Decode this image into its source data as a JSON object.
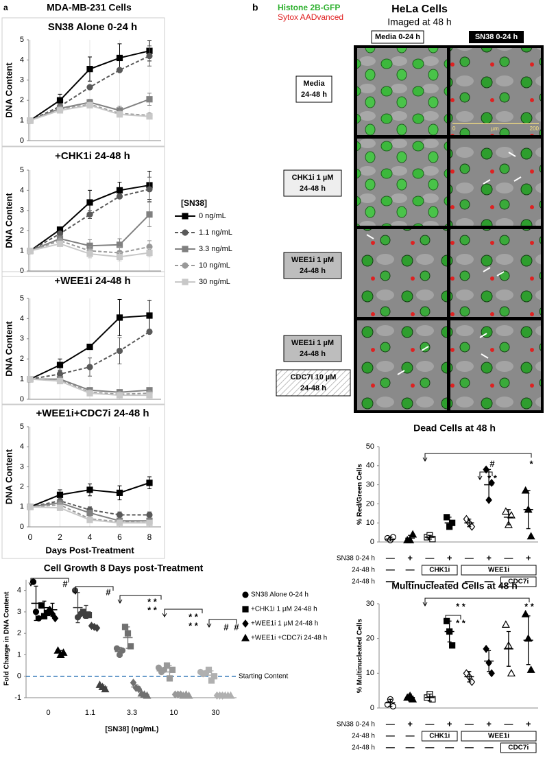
{
  "panel_a": {
    "label": "a",
    "title": "MDA-MB-231 Cells"
  },
  "panel_b": {
    "label": "b",
    "stain_green": "Histone 2B-GFP",
    "stain_red": "Sytox AADvanced",
    "title": "HeLa Cells",
    "subtitle": "Imaged at 48 h",
    "columns": [
      "Media 0-24 h",
      "SN38 0-24 h"
    ],
    "row_labels": [
      {
        "lines": [
          "Media",
          "24-48 h"
        ]
      },
      {
        "lines": [
          "CHK1i 1 µM",
          "24-48 h"
        ]
      },
      {
        "lines": [
          "WEE1i 1 µM",
          "24-48 h"
        ]
      },
      {
        "lines": [
          "WEE1i 1 µM",
          "24-48 h"
        ]
      },
      {
        "lines": [
          "CDC7i 10 µM",
          "24-48 h"
        ]
      }
    ],
    "scale_bar": {
      "start": "0",
      "unit": "µm",
      "end": "200"
    }
  },
  "chart_data": [
    {
      "type": "line",
      "title": "SN38 Alone 0-24 h",
      "ylabel": "DNA Content",
      "x": [
        0,
        2,
        4,
        6,
        8
      ],
      "xlim": [
        0,
        8
      ],
      "xticks": [
        0,
        2,
        4,
        6,
        8
      ],
      "xtick_labels": false,
      "ylim": [
        0,
        5
      ],
      "yticks": [
        0,
        1,
        2,
        3,
        4,
        5
      ],
      "series": [
        {
          "color": "#000000",
          "marker": "square",
          "dash": false,
          "values": [
            1,
            2.0,
            3.55,
            4.1,
            4.45
          ],
          "errors": [
            0,
            0.3,
            0.6,
            0.7,
            0.5
          ]
        },
        {
          "color": "#595959",
          "marker": "circle",
          "dash": true,
          "values": [
            1,
            1.7,
            2.65,
            3.5,
            4.2
          ],
          "errors": [
            0,
            0.1,
            0.1,
            0.1,
            0.5
          ]
        },
        {
          "color": "#808080",
          "marker": "square",
          "dash": false,
          "values": [
            1,
            1.6,
            1.9,
            1.5,
            2.05
          ],
          "errors": [
            0,
            0.2,
            0.15,
            0.2,
            0.3
          ]
        },
        {
          "color": "#999999",
          "marker": "circle",
          "dash": true,
          "values": [
            1,
            1.55,
            1.8,
            1.35,
            1.25
          ],
          "errors": [
            0,
            0.15,
            0.1,
            0.1,
            0.1
          ]
        },
        {
          "color": "#c8c8c8",
          "marker": "square",
          "dash": false,
          "values": [
            1,
            1.5,
            1.75,
            1.3,
            1.2
          ],
          "errors": [
            0,
            0.1,
            0.1,
            0.1,
            0.1
          ]
        }
      ]
    },
    {
      "type": "line",
      "title": "+CHK1i 24-48 h",
      "ylabel": "DNA Content",
      "x": [
        0,
        2,
        4,
        6,
        8
      ],
      "xlim": [
        0,
        8
      ],
      "xticks": [
        0,
        2,
        4,
        6,
        8
      ],
      "xtick_labels": false,
      "ylim": [
        0,
        5
      ],
      "yticks": [
        0,
        1,
        2,
        3,
        4,
        5
      ],
      "legend_title": "[SN38]",
      "series": [
        {
          "name": "0 ng/mL",
          "color": "#000000",
          "marker": "square",
          "dash": false,
          "values": [
            1,
            2.05,
            3.4,
            4.0,
            4.25
          ],
          "errors": [
            0,
            0.1,
            0.6,
            0.4,
            0.7
          ]
        },
        {
          "name": "1.1 ng/mL",
          "color": "#595959",
          "marker": "circle",
          "dash": true,
          "values": [
            1,
            1.85,
            2.8,
            3.7,
            4.05
          ],
          "errors": [
            0,
            0.1,
            0.2,
            0.1,
            0.6
          ]
        },
        {
          "name": "3.3 ng/mL",
          "color": "#808080",
          "marker": "square",
          "dash": false,
          "values": [
            1,
            1.6,
            1.25,
            1.3,
            2.8
          ],
          "errors": [
            0,
            0.1,
            0.3,
            0.3,
            0.6
          ]
        },
        {
          "name": "10 ng/mL",
          "color": "#999999",
          "marker": "circle",
          "dash": true,
          "values": [
            1,
            1.5,
            1.0,
            0.9,
            1.2
          ],
          "errors": [
            0,
            0.1,
            0.2,
            0.3,
            0.3
          ]
        },
        {
          "name": "30 ng/mL",
          "color": "#c8c8c8",
          "marker": "square",
          "dash": false,
          "values": [
            1,
            1.35,
            0.85,
            0.7,
            0.9
          ],
          "errors": [
            0,
            0.1,
            0.2,
            0.2,
            0.2
          ]
        }
      ]
    },
    {
      "type": "line",
      "title": "+WEE1i 24-48 h",
      "ylabel": "DNA Content",
      "x": [
        0,
        2,
        4,
        6,
        8
      ],
      "xlim": [
        0,
        8
      ],
      "xticks": [
        0,
        2,
        4,
        6,
        8
      ],
      "xtick_labels": false,
      "ylim": [
        0,
        5
      ],
      "yticks": [
        0,
        1,
        2,
        3,
        4,
        5
      ],
      "series": [
        {
          "color": "#000000",
          "marker": "square",
          "dash": false,
          "values": [
            1,
            1.7,
            2.6,
            4.05,
            4.15
          ],
          "errors": [
            0,
            0.3,
            0.1,
            0.9,
            0.75
          ]
        },
        {
          "color": "#595959",
          "marker": "circle",
          "dash": true,
          "values": [
            1,
            1.25,
            1.6,
            2.4,
            3.35
          ],
          "errors": [
            0,
            0.2,
            0.45,
            0.65,
            0.1
          ]
        },
        {
          "color": "#808080",
          "marker": "square",
          "dash": false,
          "values": [
            1,
            1.0,
            0.45,
            0.35,
            0.45
          ],
          "errors": [
            0,
            0.1,
            0.1,
            0.1,
            0.1
          ]
        },
        {
          "color": "#999999",
          "marker": "circle",
          "dash": true,
          "values": [
            1,
            0.95,
            0.35,
            0.25,
            0.3
          ],
          "errors": [
            0,
            0.05,
            0.05,
            0.05,
            0.05
          ]
        },
        {
          "color": "#c8c8c8",
          "marker": "square",
          "dash": false,
          "values": [
            1,
            0.9,
            0.3,
            0.2,
            0.2
          ],
          "errors": [
            0,
            0.05,
            0.05,
            0.05,
            0.05
          ]
        }
      ]
    },
    {
      "type": "line",
      "title": "+WEE1i+CDC7i 24-48 h",
      "ylabel": "DNA Content",
      "xlabel": "Days Post-Treatment",
      "x": [
        0,
        2,
        4,
        6,
        8
      ],
      "xlim": [
        0,
        8
      ],
      "xticks": [
        0,
        2,
        4,
        6,
        8
      ],
      "xtick_labels": true,
      "ylim": [
        0,
        5
      ],
      "yticks": [
        0,
        1,
        2,
        3,
        4,
        5
      ],
      "series": [
        {
          "color": "#000000",
          "marker": "square",
          "dash": false,
          "values": [
            1,
            1.6,
            1.85,
            1.7,
            2.2
          ],
          "errors": [
            0,
            0.25,
            0.3,
            0.35,
            0.3
          ]
        },
        {
          "color": "#595959",
          "marker": "circle",
          "dash": true,
          "values": [
            1,
            1.3,
            0.85,
            0.6,
            0.6
          ],
          "errors": [
            0,
            0.1,
            0.15,
            0.15,
            0.15
          ]
        },
        {
          "color": "#808080",
          "marker": "square",
          "dash": false,
          "values": [
            1,
            1.2,
            0.7,
            0.3,
            0.3
          ],
          "errors": [
            0,
            0.1,
            0.1,
            0.1,
            0.1
          ]
        },
        {
          "color": "#999999",
          "marker": "circle",
          "dash": true,
          "values": [
            1,
            1.1,
            0.4,
            0.25,
            0.2
          ],
          "errors": [
            0,
            0.05,
            0.05,
            0.05,
            0.05
          ]
        },
        {
          "color": "#c8c8c8",
          "marker": "square",
          "dash": false,
          "values": [
            1,
            0.95,
            0.35,
            0.2,
            0.2
          ],
          "errors": [
            0,
            0.05,
            0.05,
            0.05,
            0.05
          ]
        }
      ]
    },
    {
      "type": "dot",
      "title": "Cell Growth 8 Days post-Treatment",
      "ylabel": "Fold Change in DNA Content",
      "xlabel": "[SN38] (ng/mL)",
      "categories": [
        "0",
        "1.1",
        "3.3",
        "10",
        "30"
      ],
      "category_colors": [
        "#000000",
        "#404040",
        "#707070",
        "#999999",
        "#b0b0b0"
      ],
      "ylim": [
        -1,
        4.5
      ],
      "yticks": [
        -1,
        0,
        1,
        2,
        3,
        4
      ],
      "reference_line": {
        "value": 0,
        "label": "Starting Content"
      },
      "annotations": [
        "#",
        "#",
        "* *",
        "* *",
        "* *",
        "* *",
        "#",
        "#"
      ],
      "series": [
        {
          "name": "SN38 Alone 0-24 h",
          "marker": "circle",
          "values": [
            3.4,
            3.2,
            1.15,
            0.25,
            0.15
          ],
          "errors": [
            0.8,
            0.7,
            0.2,
            0.15,
            0.1
          ],
          "points": [
            [
              4.4,
              3.0,
              2.7
            ],
            [
              4.0,
              2.75,
              2.9
            ],
            [
              1.3,
              1.0,
              1.2
            ],
            [
              0.4,
              0.2,
              0.3
            ],
            [
              0.2,
              0.1,
              0.15
            ]
          ]
        },
        {
          "name": "+CHK1i 1 µM 24-48 h",
          "marker": "square",
          "values": [
            3.2,
            3.0,
            1.8,
            0.2,
            0.05
          ],
          "errors": [
            0.3,
            0.3,
            0.5,
            0.3,
            0.2
          ],
          "points": [
            [
              3.3,
              2.8,
              2.95
            ],
            [
              3.0,
              2.85,
              2.85
            ],
            [
              2.3,
              2.0,
              1.4
            ],
            [
              0.5,
              -0.1,
              0.3
            ],
            [
              0.3,
              -0.2,
              0.0
            ]
          ]
        },
        {
          "name": "+WEE1i 1 µM 24-48 h",
          "marker": "diamond",
          "values": [
            3.1,
            2.3,
            -0.5,
            -0.85,
            -0.9
          ],
          "errors": [
            0.3,
            0.05,
            0.1,
            0.02,
            0.02
          ],
          "points": [
            [
              3.1,
              2.9,
              2.7
            ],
            [
              2.35,
              2.3,
              2.25
            ],
            [
              -0.3,
              -0.55,
              -0.6
            ],
            [
              -0.85,
              -0.85,
              -0.85
            ],
            [
              -0.9,
              -0.9,
              -0.9
            ]
          ]
        },
        {
          "name": "+WEE1i +CDC7i 24-48 h",
          "marker": "triangle",
          "values": [
            1.1,
            -0.5,
            -0.85,
            -0.88,
            -0.9
          ],
          "errors": [
            0.1,
            0.1,
            0.05,
            0.02,
            0.02
          ],
          "points": [
            [
              1.2,
              1.0,
              1.1
            ],
            [
              -0.4,
              -0.5,
              -0.6
            ],
            [
              -0.8,
              -0.85,
              -0.9
            ],
            [
              -0.9,
              -0.85,
              -0.9
            ],
            [
              -0.9,
              -0.9,
              -0.9
            ]
          ]
        }
      ]
    },
    {
      "type": "dot",
      "title": "Dead Cells at 48 h",
      "ylabel": "% Red/Green Cells",
      "ylim": [
        0,
        50
      ],
      "yticks": [
        0,
        10,
        20,
        30,
        40,
        50
      ],
      "markers": [
        "circle-open",
        "triangle",
        "square-open",
        "square",
        "diamond-open",
        "diamond",
        "triangle-open",
        "triangle"
      ],
      "annotations": [
        "#",
        "* *",
        "*"
      ],
      "series": [
        {
          "color": "#000000",
          "values": [
            1.5,
            2,
            2.5,
            10,
            10,
            30,
            13,
            17
          ],
          "errors": [
            1,
            1.5,
            1,
            3,
            2,
            8,
            4,
            10
          ],
          "points": [
            [
              2,
              1,
              2.5
            ],
            [
              1,
              1,
              4
            ],
            [
              2.5,
              3.5,
              1.5
            ],
            [
              13,
              8,
              10
            ],
            [
              12,
              10,
              8
            ],
            [
              38,
              22,
              31
            ],
            [
              16,
              9,
              14
            ],
            [
              27,
              17,
              3
            ]
          ]
        }
      ],
      "conditions": [
        {
          "label": "SN38 0-24 h",
          "items": [
            "—",
            "+",
            "—",
            "+",
            "—",
            "+",
            "—",
            "+"
          ]
        },
        {
          "label": "24-48 h",
          "items": [
            "—",
            "—",
            "CHK1i",
            "WEE1i"
          ]
        },
        {
          "label": "24-48 h",
          "items": [
            "—",
            "—",
            "—",
            "—",
            "—",
            "—",
            "CDC7i"
          ]
        }
      ]
    },
    {
      "type": "dot",
      "title": "Multinucleated Cells at 48 h",
      "ylabel": "% Multinucleated Cells",
      "ylim": [
        0,
        30
      ],
      "yticks": [
        0,
        10,
        20,
        30
      ],
      "markers": [
        "circle-open",
        "triangle",
        "square-open",
        "square",
        "diamond-open",
        "diamond",
        "triangle-open",
        "triangle"
      ],
      "annotations": [
        "* *",
        "* *",
        "* *"
      ],
      "series": [
        {
          "color": "#000000",
          "values": [
            1.5,
            3,
            3,
            22,
            9,
            13.5,
            17,
            19.5
          ],
          "errors": [
            1,
            1,
            1,
            3,
            1.5,
            3,
            5,
            7
          ],
          "points": [
            [
              1,
              2.5,
              0.5
            ],
            [
              3,
              3.5,
              2.5
            ],
            [
              3,
              4,
              2.5
            ],
            [
              25,
              22,
              18
            ],
            [
              10,
              9,
              7.5
            ],
            [
              17,
              13,
              10
            ],
            [
              24,
              18,
              10
            ],
            [
              27,
              20,
              11
            ]
          ]
        }
      ],
      "conditions": [
        {
          "label": "SN38 0-24 h",
          "items": [
            "—",
            "+",
            "—",
            "+",
            "—",
            "+",
            "—",
            "+"
          ]
        },
        {
          "label": "24-48 h",
          "items": [
            "—",
            "—",
            "CHK1i",
            "WEE1i"
          ]
        },
        {
          "label": "24-48 h",
          "items": [
            "—",
            "—",
            "—",
            "—",
            "—",
            "—",
            "CDC7i"
          ]
        }
      ]
    }
  ]
}
